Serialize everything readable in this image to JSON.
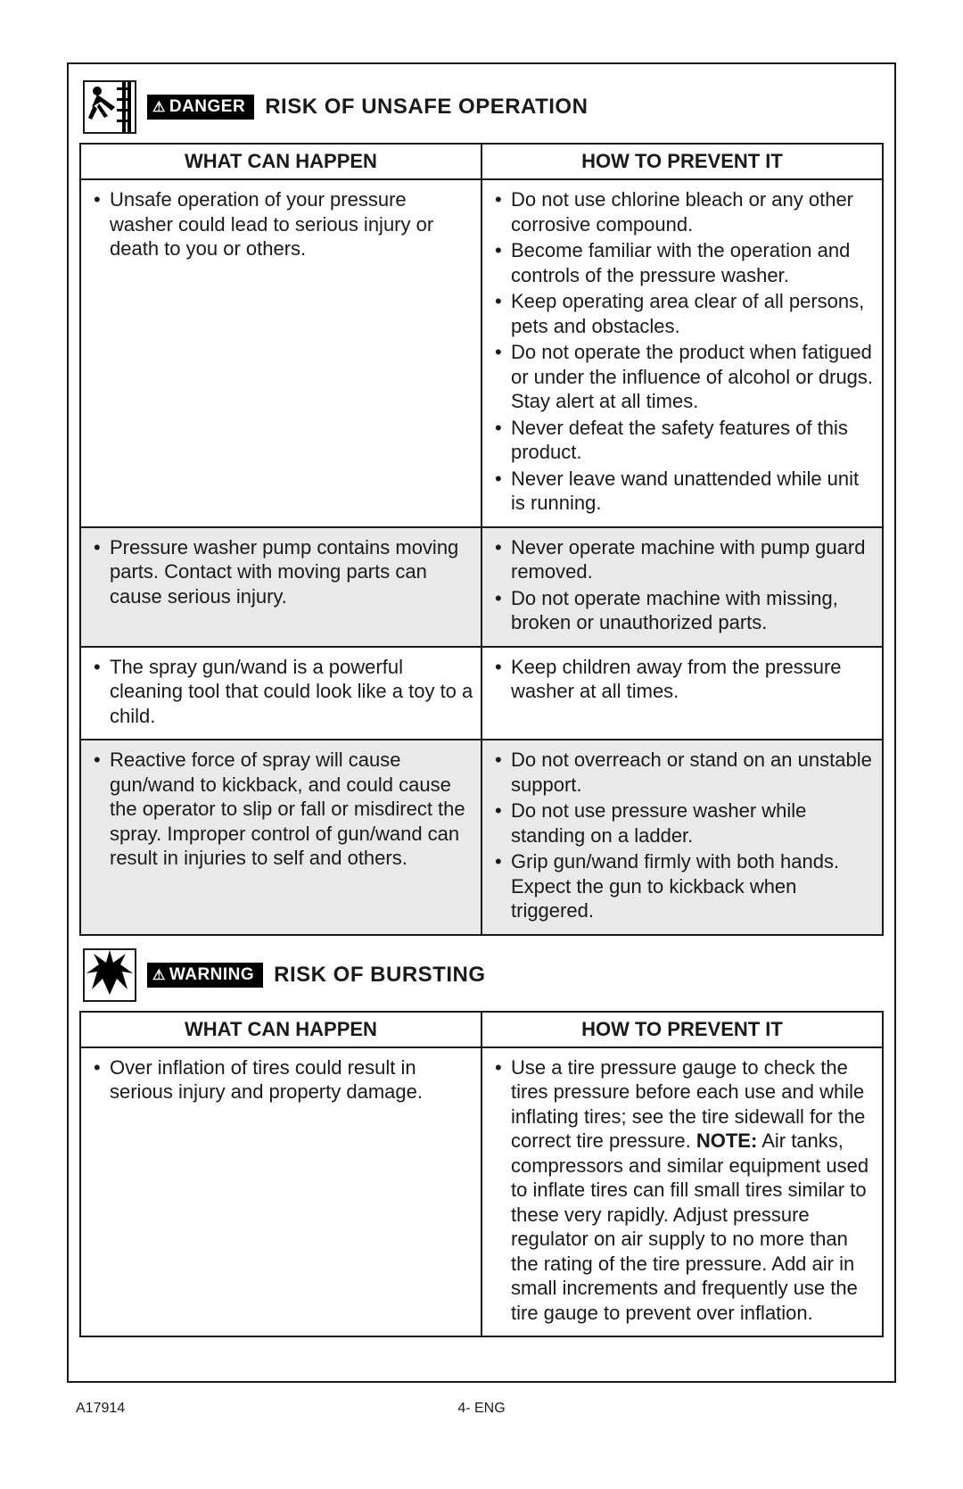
{
  "section1": {
    "labelType": "DANGER",
    "title": "RISK OF UNSAFE OPERATION",
    "headers": {
      "left": "WHAT CAN HAPPEN",
      "right": "HOW TO PREVENT IT"
    },
    "rows": [
      {
        "shaded": false,
        "left": [
          "Unsafe operation of your pressure washer could lead to serious injury or death to you or others."
        ],
        "right": [
          "Do not use chlorine bleach or any other corrosive compound.",
          "Become familiar with the operation and controls of the pressure washer.",
          "Keep operating area clear of all persons, pets and obstacles.",
          "Do not operate the product when fatigued or under the influence of alcohol or drugs. Stay alert at all times.",
          "Never defeat the safety features of this product.",
          "Never leave wand unattended while unit is running."
        ]
      },
      {
        "shaded": true,
        "left": [
          "Pressure washer pump contains moving parts. Contact with moving parts can cause serious injury."
        ],
        "right": [
          "Never operate machine with pump guard removed.",
          "Do not operate machine with missing, broken or unauthorized parts."
        ]
      },
      {
        "shaded": false,
        "left": [
          "The spray gun/wand is a powerful cleaning tool that could look like a toy to a child."
        ],
        "right": [
          "Keep children away from the pressure washer at all times."
        ]
      },
      {
        "shaded": true,
        "left": [
          "Reactive force of spray will cause gun/wand to kickback, and could cause the operator to slip or fall or misdirect the spray. Improper control of gun/wand can result in injuries to self and others."
        ],
        "right": [
          "Do not overreach or stand on an unstable support.",
          "Do not use pressure washer while standing on a ladder.",
          "Grip gun/wand firmly with both hands. Expect the gun to kickback when triggered."
        ]
      }
    ]
  },
  "section2": {
    "labelType": "WARNING",
    "title": "RISK OF BURSTING",
    "headers": {
      "left": "WHAT CAN HAPPEN",
      "right": "HOW TO PREVENT IT"
    },
    "rows": [
      {
        "shaded": false,
        "left": [
          "Over inflation of tires could result in serious injury and property damage."
        ],
        "rightSpecial": {
          "bullet": "Use a tire pressure gauge to check the tires pressure before each use and while inflating tires; see the tire sidewall for the correct tire pressure.",
          "noteLabel": "NOTE:",
          "noteText": " Air tanks, compressors and similar equipment used to inflate tires can fill small tires similar to these very rapidly. Adjust pressure regulator on air supply to no more than the rating of the tire pressure. Add air in small increments and frequently use the tire gauge to prevent over inflation."
        }
      }
    ]
  },
  "footer": {
    "docId": "A17914",
    "pageLabel": "4- ENG"
  }
}
